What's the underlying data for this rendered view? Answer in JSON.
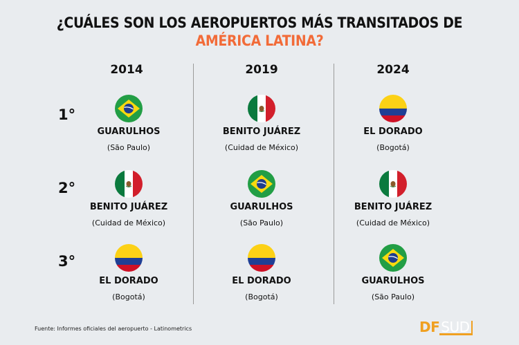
{
  "title": {
    "line1": "¿CUÁLES SON LOS AEROPUERTOS MÁS TRANSITADOS DE",
    "line2": "AMÉRICA LATINA?",
    "accent_color": "#f26b38"
  },
  "years": [
    "2014",
    "2019",
    "2024"
  ],
  "ranks": [
    "1°",
    "2°",
    "3°"
  ],
  "grid": [
    [
      {
        "flag": "brazil-flag",
        "name": "GUARULHOS",
        "city": "(São Paulo)"
      },
      {
        "flag": "mexico-flag",
        "name": "BENITO JUÁREZ",
        "city": "(Cuidad de México)"
      },
      {
        "flag": "colombia-flag",
        "name": "EL DORADO",
        "city": "(Bogotá)"
      }
    ],
    [
      {
        "flag": "mexico-flag",
        "name": "BENITO JUÁREZ",
        "city": "(Cuidad de México)"
      },
      {
        "flag": "brazil-flag",
        "name": "GUARULHOS",
        "city": "(São Paulo)"
      },
      {
        "flag": "mexico-flag",
        "name": "BENITO JUÁREZ",
        "city": "(Cuidad de México)"
      }
    ],
    [
      {
        "flag": "colombia-flag",
        "name": "EL DORADO",
        "city": "(Bogotá)"
      },
      {
        "flag": "colombia-flag",
        "name": "EL DORADO",
        "city": "(Bogotá)"
      },
      {
        "flag": "brazil-flag",
        "name": "GUARULHOS",
        "city": "(São Paulo)"
      }
    ]
  ],
  "footer": {
    "source": "Fuente: Informes oficiales del aeropuerto - Latinometrics",
    "logo": {
      "df": "DF",
      "sud": "SUD"
    }
  }
}
